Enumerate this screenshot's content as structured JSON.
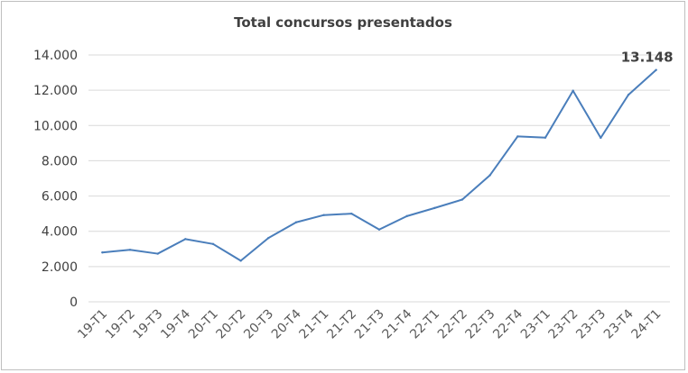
{
  "chart_data": {
    "type": "line",
    "title": "Total concursos presentados",
    "xlabel": "",
    "ylabel": "",
    "ylim": [
      0,
      14000
    ],
    "yticks": [
      0,
      2000,
      4000,
      6000,
      8000,
      10000,
      12000,
      14000
    ],
    "ytick_labels": [
      "0",
      "2.000",
      "4.000",
      "6.000",
      "8.000",
      "10.000",
      "12.000",
      "14.000"
    ],
    "grid": true,
    "legend": "none",
    "categories": [
      "19-T1",
      "19-T2",
      "19-T3",
      "19-T4",
      "20-T1",
      "20-T2",
      "20-T3",
      "20-T4",
      "21-T1",
      "21-T2",
      "21-T3",
      "21-T4",
      "22-T1",
      "22-T2",
      "22-T3",
      "22-T4",
      "23-T1",
      "23-T2",
      "23-T3",
      "23-T4",
      "24-T1"
    ],
    "series": [
      {
        "color": "#4a7ebb",
        "values": [
          2800,
          2950,
          2730,
          3560,
          3280,
          2330,
          3620,
          4510,
          4920,
          5000,
          4100,
          4860,
          5320,
          5800,
          7180,
          9380,
          9310,
          11970,
          9300,
          11740,
          13148
        ]
      }
    ],
    "data_labels": [
      {
        "index": 20,
        "text": "13.148"
      }
    ]
  }
}
